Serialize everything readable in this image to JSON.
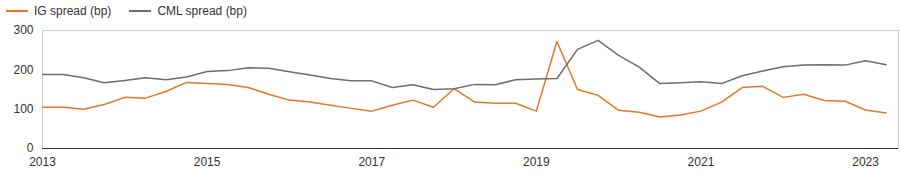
{
  "chart_data": {
    "type": "line",
    "x": [
      2013,
      2013.25,
      2013.5,
      2013.75,
      2014,
      2014.25,
      2014.5,
      2014.75,
      2015,
      2015.25,
      2015.5,
      2015.75,
      2016,
      2016.25,
      2016.5,
      2016.75,
      2017,
      2017.25,
      2017.5,
      2017.75,
      2018,
      2018.25,
      2018.5,
      2018.75,
      2019,
      2019.25,
      2019.5,
      2019.75,
      2020,
      2020.25,
      2020.5,
      2020.75,
      2021,
      2021.25,
      2021.5,
      2021.75,
      2022,
      2022.25,
      2022.5,
      2022.75,
      2023,
      2023.25
    ],
    "series": [
      {
        "name": "IG spread (bp)",
        "color": "#e87722",
        "values": [
          105,
          105,
          100,
          112,
          130,
          128,
          145,
          168,
          165,
          163,
          155,
          138,
          123,
          118,
          110,
          102,
          95,
          110,
          123,
          105,
          152,
          118,
          115,
          115,
          95,
          272,
          150,
          135,
          97,
          92,
          80,
          85,
          95,
          118,
          155,
          158,
          130,
          138,
          122,
          120,
          98,
          90
        ]
      },
      {
        "name": "CML spread (bp)",
        "color": "#6d6e71",
        "values": [
          188,
          188,
          180,
          167,
          173,
          180,
          175,
          182,
          196,
          198,
          205,
          204,
          195,
          187,
          178,
          172,
          172,
          155,
          162,
          150,
          152,
          163,
          162,
          175,
          177,
          178,
          252,
          275,
          237,
          207,
          165,
          167,
          170,
          165,
          185,
          197,
          208,
          212,
          213,
          212,
          223,
          213
        ]
      }
    ],
    "xlim": [
      2013,
      2023.4
    ],
    "xticks": [
      2013,
      2015,
      2017,
      2019,
      2021,
      2023
    ],
    "ylim": [
      0,
      300
    ],
    "yticks": [
      0,
      100,
      200,
      300
    ],
    "grid": false,
    "legend": "top-left"
  }
}
